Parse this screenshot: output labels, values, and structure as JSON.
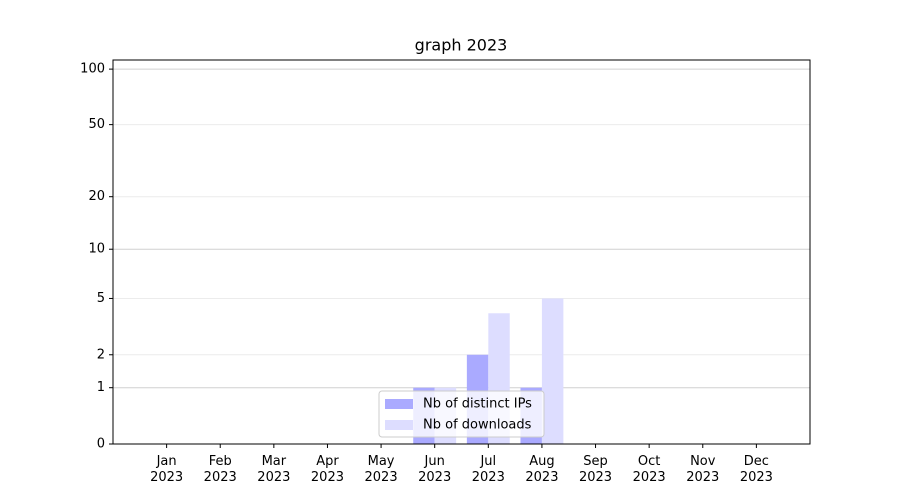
{
  "chart_data": {
    "type": "bar",
    "title": "graph 2023",
    "categories": [
      "Jan\n2023",
      "Feb\n2023",
      "Mar\n2023",
      "Apr\n2023",
      "May\n2023",
      "Jun\n2023",
      "Jul\n2023",
      "Aug\n2023",
      "Sep\n2023",
      "Oct\n2023",
      "Nov\n2023",
      "Dec\n2023"
    ],
    "series": [
      {
        "name": "Nb of distinct IPs",
        "color": "#aaaaff",
        "values": [
          0,
          0,
          0,
          0,
          0,
          1,
          2,
          1,
          0,
          0,
          0,
          0
        ]
      },
      {
        "name": "Nb of downloads",
        "color": "#ddddff",
        "values": [
          0,
          0,
          0,
          0,
          0,
          1,
          4,
          5,
          0,
          0,
          0,
          0
        ]
      }
    ],
    "yscale": "log1p",
    "ylim": [
      0,
      112
    ],
    "yticks": [
      0,
      1,
      2,
      5,
      10,
      20,
      50,
      100
    ],
    "grid": true,
    "legend": "lower center"
  }
}
